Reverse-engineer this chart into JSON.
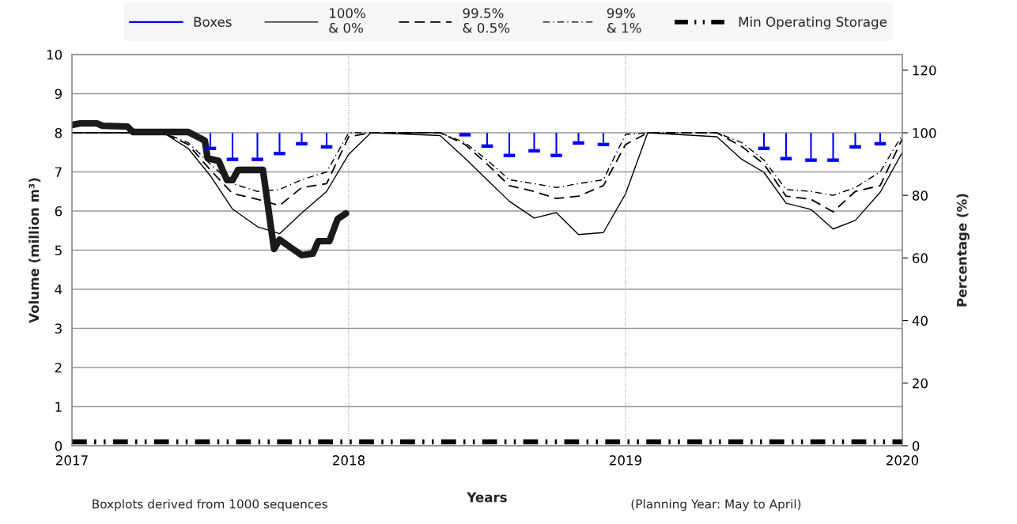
{
  "chart_data": {
    "type": "line",
    "xlabel": "Years",
    "ylabel": "Volume (million m³)",
    "y2label": "Percentage (%)",
    "xlim": [
      2017,
      2020
    ],
    "xticks": [
      2017,
      2018,
      2019,
      2020
    ],
    "ylim": [
      0,
      10
    ],
    "yticks": [
      0,
      1,
      2,
      3,
      4,
      5,
      6,
      7,
      8,
      9,
      10
    ],
    "y2lim": [
      0,
      125
    ],
    "y2ticks": [
      0,
      20,
      40,
      60,
      80,
      100,
      120
    ],
    "grid": true,
    "legend": "top",
    "marker": "none",
    "annotations": [
      "Boxplots derived from 1000 sequences",
      "(Planning Year: May to April)"
    ],
    "series": [
      {
        "name": "Boxes",
        "type": "scatter",
        "marker": "square",
        "color": "#0000ff",
        "x": [
          2017.5,
          2017.58,
          2017.67,
          2017.75,
          2017.83,
          2017.92,
          2018.42,
          2018.5,
          2018.58,
          2018.67,
          2018.75,
          2018.83,
          2018.92,
          2019.5,
          2019.58,
          2019.67,
          2019.75,
          2019.83,
          2019.92
        ],
        "values": [
          7.6,
          7.32,
          7.32,
          7.47,
          7.72,
          7.64,
          7.95,
          7.66,
          7.42,
          7.54,
          7.42,
          7.74,
          7.7,
          7.6,
          7.34,
          7.3,
          7.3,
          7.64,
          7.72
        ],
        "errors": [
          [
            7.6,
            8
          ],
          [
            7.32,
            8
          ],
          [
            7.32,
            8
          ],
          [
            7.47,
            8
          ],
          [
            7.72,
            8
          ],
          [
            7.64,
            8
          ],
          [
            7.95,
            8
          ],
          [
            7.66,
            8
          ],
          [
            7.42,
            8
          ],
          [
            7.54,
            8
          ],
          [
            7.42,
            8
          ],
          [
            7.74,
            8
          ],
          [
            7.7,
            8
          ],
          [
            7.6,
            8
          ],
          [
            7.34,
            8
          ],
          [
            7.3,
            8
          ],
          [
            7.3,
            8
          ],
          [
            7.64,
            8
          ],
          [
            7.72,
            8
          ]
        ]
      },
      {
        "name": "100%\n& 0%",
        "line_style": "solid",
        "color": "#000000",
        "x": [
          2017,
          2017.33,
          2017.42,
          2017.5,
          2017.58,
          2017.67,
          2017.75,
          2017.83,
          2017.92,
          2018,
          2018.08,
          2018.33,
          2018.42,
          2018.5,
          2018.58,
          2018.67,
          2018.75,
          2018.83,
          2018.92,
          2019,
          2019.08,
          2019.33,
          2019.42,
          2019.5,
          2019.58,
          2019.67,
          2019.75,
          2019.83,
          2019.92,
          2020
        ],
        "values": [
          8,
          8,
          7.6,
          6.9,
          6.05,
          5.6,
          5.42,
          5.95,
          6.5,
          7.45,
          8,
          7.93,
          7.35,
          6.8,
          6.25,
          5.82,
          5.96,
          5.4,
          5.45,
          6.44,
          8,
          7.9,
          7.32,
          6.99,
          6.2,
          6.04,
          5.54,
          5.76,
          6.48,
          7.5
        ]
      },
      {
        "name": "99.5%\n& 0.5%",
        "line_style": "dashed",
        "color": "#000000",
        "x": [
          2017,
          2017.33,
          2017.42,
          2017.5,
          2017.58,
          2017.67,
          2017.75,
          2017.83,
          2017.92,
          2018,
          2018.08,
          2018.33,
          2018.42,
          2018.5,
          2018.58,
          2018.67,
          2018.75,
          2018.83,
          2018.92,
          2019,
          2019.08,
          2019.33,
          2019.42,
          2019.5,
          2019.58,
          2019.67,
          2019.75,
          2019.83,
          2019.92,
          2020
        ],
        "values": [
          8,
          8,
          7.7,
          7.05,
          6.45,
          6.3,
          6.14,
          6.6,
          6.7,
          7.9,
          8,
          8,
          7.7,
          7.2,
          6.65,
          6.5,
          6.32,
          6.38,
          6.65,
          7.7,
          8,
          8,
          7.65,
          7.2,
          6.38,
          6.3,
          5.98,
          6.5,
          6.65,
          7.85
        ]
      },
      {
        "name": "99%\n& 1%",
        "line_style": "dashdot",
        "color": "#000000",
        "x": [
          2017,
          2017.33,
          2017.42,
          2017.5,
          2017.58,
          2017.67,
          2017.75,
          2017.83,
          2017.92,
          2018,
          2018.08,
          2018.33,
          2018.42,
          2018.5,
          2018.58,
          2018.67,
          2018.75,
          2018.83,
          2018.92,
          2019,
          2019.08,
          2019.33,
          2019.42,
          2019.5,
          2019.58,
          2019.67,
          2019.75,
          2019.83,
          2019.92,
          2020
        ],
        "values": [
          8,
          8,
          7.75,
          7.2,
          6.7,
          6.5,
          6.55,
          6.8,
          7.0,
          8.0,
          8,
          8,
          7.75,
          7.3,
          6.8,
          6.7,
          6.6,
          6.7,
          6.8,
          7.96,
          8,
          8,
          7.75,
          7.3,
          6.55,
          6.5,
          6.4,
          6.6,
          7.0,
          7.95
        ]
      },
      {
        "name": "Min Operating Storage",
        "line_style": "dashdot",
        "color": "#000000",
        "x": [
          2017,
          2020
        ],
        "values": [
          0.1,
          0.1
        ]
      },
      {
        "line_style": "solid",
        "color": "#1a1a1a",
        "x": [
          2017,
          2017.03,
          2017.09,
          2017.11,
          2017.2,
          2017.22,
          2017.42,
          2017.48,
          2017.49,
          2017.53,
          2017.56,
          2017.58,
          2017.6,
          2017.69,
          2017.73,
          2017.75,
          2017.79,
          2017.83,
          2017.87,
          2017.89,
          2017.93,
          2017.96,
          2017.99
        ],
        "values": [
          8.2,
          8.24,
          8.24,
          8.18,
          8.16,
          8.02,
          8.02,
          7.8,
          7.35,
          7.28,
          6.79,
          6.79,
          7.05,
          7.05,
          5.03,
          5.27,
          5.07,
          4.87,
          4.91,
          5.23,
          5.23,
          5.8,
          5.94
        ]
      }
    ]
  }
}
